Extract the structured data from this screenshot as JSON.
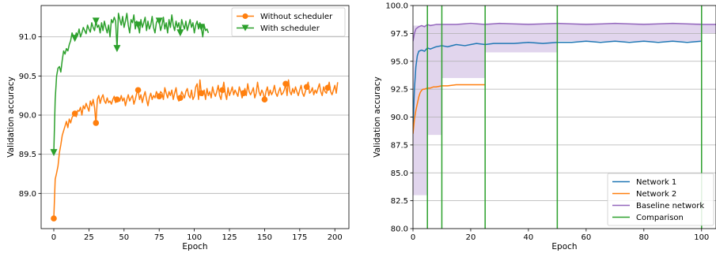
{
  "chart_data": [
    {
      "type": "line",
      "xlabel": "Epoch",
      "ylabel": "Validation accuracy",
      "xlim": [
        -9,
        210
      ],
      "ylim": [
        88.55,
        91.4
      ],
      "xticks": [
        0,
        25,
        50,
        75,
        100,
        125,
        150,
        175,
        200
      ],
      "yticks": [
        89.0,
        89.5,
        90.0,
        90.5,
        91.0
      ],
      "ytick_labels": [
        "89.0",
        "89.5",
        "90.0",
        "90.5",
        "91.0"
      ],
      "grid": "horizontal",
      "legend_position": "top-right",
      "series": [
        {
          "name": "Without scheduler",
          "color": "#ff7f0e",
          "marker": "circle",
          "markevery": 15,
          "y": [
            88.68,
            89.18,
            89.26,
            89.35,
            89.52,
            89.62,
            89.74,
            89.8,
            89.86,
            89.92,
            89.84,
            89.95,
            89.9,
            89.97,
            90.0,
            90.02,
            89.98,
            90.06,
            90.05,
            90.1,
            90.0,
            90.12,
            90.08,
            90.15,
            90.1,
            90.05,
            90.18,
            90.12,
            90.2,
            90.1,
            89.9,
            90.2,
            90.25,
            90.15,
            90.22,
            90.26,
            90.18,
            90.15,
            90.22,
            90.16,
            90.18,
            90.14,
            90.2,
            90.24,
            90.16,
            90.2,
            90.22,
            90.18,
            90.25,
            90.18,
            90.22,
            90.12,
            90.2,
            90.26,
            90.18,
            90.22,
            90.25,
            90.14,
            90.2,
            90.28,
            90.32,
            90.2,
            90.26,
            90.16,
            90.24,
            90.3,
            90.2,
            90.12,
            90.22,
            90.28,
            90.2,
            90.25,
            90.22,
            90.3,
            90.26,
            90.24,
            90.3,
            90.28,
            90.2,
            90.35,
            90.28,
            90.22,
            90.3,
            90.25,
            90.32,
            90.2,
            90.28,
            90.35,
            90.22,
            90.18,
            90.22,
            90.3,
            90.26,
            90.22,
            90.3,
            90.34,
            90.25,
            90.22,
            90.32,
            90.2,
            90.24,
            90.36,
            90.4,
            90.2,
            90.45,
            90.28,
            90.25,
            90.32,
            90.2,
            90.34,
            90.25,
            90.3,
            90.22,
            90.36,
            90.28,
            90.24,
            90.3,
            90.38,
            90.25,
            90.2,
            90.32,
            90.42,
            90.28,
            90.2,
            90.35,
            90.25,
            90.3,
            90.36,
            90.26,
            90.32,
            90.28,
            90.24,
            90.36,
            90.3,
            90.22,
            90.28,
            90.34,
            90.25,
            90.4,
            90.3,
            90.26,
            90.3,
            90.35,
            90.22,
            90.28,
            90.42,
            90.3,
            90.25,
            90.32,
            90.28,
            90.2,
            90.3,
            90.36,
            90.25,
            90.32,
            90.26,
            90.3,
            90.38,
            90.28,
            90.24,
            90.3,
            90.35,
            90.26,
            90.28,
            90.32,
            90.4,
            90.25,
            90.45,
            90.3,
            90.26,
            90.34,
            90.28,
            90.36,
            90.3,
            90.25,
            90.32,
            90.38,
            90.28,
            90.24,
            90.3,
            90.36,
            90.42,
            90.28,
            90.3,
            90.35,
            90.26,
            90.32,
            90.28,
            90.34,
            90.4,
            90.3,
            90.25,
            90.36,
            90.3,
            90.28,
            90.35,
            90.42,
            90.3,
            90.26,
            90.32,
            90.38,
            90.28,
            90.42
          ]
        },
        {
          "name": "With scheduler",
          "color": "#2ca02c",
          "marker": "triangle-down",
          "markevery": 15,
          "y": [
            89.52,
            90.2,
            90.5,
            90.6,
            90.62,
            90.55,
            90.7,
            90.82,
            90.78,
            90.85,
            90.82,
            90.9,
            90.95,
            91.05,
            91.0,
            90.98,
            91.05,
            91.02,
            91.1,
            91.0,
            91.05,
            91.12,
            91.08,
            91.04,
            91.15,
            91.1,
            91.06,
            91.18,
            91.12,
            91.08,
            91.2,
            91.12,
            91.15,
            91.05,
            91.18,
            91.08,
            91.2,
            91.12,
            91.05,
            91.15,
            91.0,
            91.22,
            91.18,
            91.25,
            91.2,
            90.85,
            91.3,
            91.22,
            91.15,
            91.26,
            91.12,
            91.2,
            91.3,
            91.15,
            91.05,
            91.22,
            91.18,
            91.28,
            91.1,
            91.2,
            91.15,
            91.05,
            91.22,
            91.12,
            91.18,
            91.25,
            91.08,
            91.2,
            91.1,
            91.15,
            91.26,
            91.12,
            91.05,
            91.18,
            91.22,
            91.2,
            91.08,
            91.15,
            91.25,
            91.1,
            91.18,
            91.05,
            91.22,
            91.12,
            91.28,
            91.15,
            91.08,
            91.2,
            91.12,
            91.18,
            91.05,
            91.22,
            91.15,
            91.1,
            91.2,
            91.08,
            91.15,
            91.22,
            91.12,
            91.18,
            91.05,
            91.15,
            91.2,
            91.1,
            91.18,
            91.12,
            91.0,
            91.15,
            91.08,
            91.1,
            91.05
          ]
        }
      ]
    },
    {
      "type": "line",
      "xlabel": "Epoch",
      "ylabel": "Validation accuracy",
      "xlim": [
        0,
        105
      ],
      "ylim": [
        80.0,
        100.0
      ],
      "xticks": [
        0,
        20,
        40,
        60,
        80,
        100
      ],
      "yticks": [
        80.0,
        82.5,
        85.0,
        87.5,
        90.0,
        92.5,
        95.0,
        97.5,
        100.0
      ],
      "ytick_labels": [
        "80.0",
        "82.5",
        "85.0",
        "87.5",
        "90.0",
        "92.5",
        "95.0",
        "97.5",
        "100.0"
      ],
      "grid": "horizontal",
      "legend_position": "lower-right",
      "series": [
        {
          "name": "Network 1",
          "color": "#1f77b4",
          "x": [
            0,
            0.5,
            1,
            1.5,
            2,
            3,
            4,
            5,
            6,
            8,
            10,
            12,
            15,
            18,
            20,
            22,
            25,
            28,
            30,
            35,
            40,
            45,
            50,
            55,
            60,
            65,
            70,
            75,
            80,
            85,
            90,
            95,
            100
          ],
          "y": [
            89.0,
            92.5,
            94.5,
            95.5,
            95.9,
            96.0,
            95.9,
            96.2,
            96.1,
            96.3,
            96.4,
            96.3,
            96.5,
            96.4,
            96.5,
            96.6,
            96.5,
            96.6,
            96.6,
            96.6,
            96.7,
            96.6,
            96.7,
            96.7,
            96.8,
            96.7,
            96.8,
            96.7,
            96.8,
            96.7,
            96.8,
            96.7,
            96.8
          ]
        },
        {
          "name": "Network 2",
          "color": "#ff7f0e",
          "x": [
            0,
            0.5,
            1,
            1.5,
            2,
            2.5,
            3,
            3.5,
            4,
            5,
            6,
            7,
            8,
            10,
            12,
            15,
            18,
            20,
            22,
            25
          ],
          "y": [
            88.5,
            89.8,
            90.6,
            91.2,
            91.8,
            92.2,
            92.4,
            92.5,
            92.5,
            92.6,
            92.6,
            92.7,
            92.7,
            92.8,
            92.8,
            92.9,
            92.9,
            92.9,
            92.9,
            92.9
          ]
        },
        {
          "name": "Baseline network",
          "color": "#9467bd",
          "x": [
            0,
            0.5,
            1,
            1.5,
            2,
            3,
            4,
            5,
            6,
            8,
            10,
            15,
            20,
            25,
            30,
            40,
            50,
            60,
            70,
            80,
            90,
            100,
            105
          ],
          "y": [
            96.8,
            97.5,
            97.9,
            98.0,
            98.1,
            98.2,
            98.1,
            98.3,
            98.2,
            98.3,
            98.3,
            98.3,
            98.4,
            98.3,
            98.4,
            98.3,
            98.4,
            98.3,
            98.4,
            98.3,
            98.4,
            98.3,
            98.3
          ]
        },
        {
          "name": "Comparison",
          "color": "#2ca02c",
          "vlines": [
            5,
            10,
            25,
            50,
            100
          ]
        }
      ],
      "shaded_bands": [
        {
          "color": "#9467bd",
          "x_from": 0,
          "x_to": 5,
          "y_low": 83.0,
          "y_high": 98.2
        },
        {
          "color": "#9467bd",
          "x_from": 5,
          "x_to": 10,
          "y_low": 88.4,
          "y_high": 98.3
        },
        {
          "color": "#9467bd",
          "x_from": 10,
          "x_to": 25,
          "y_low": 93.5,
          "y_high": 98.3
        },
        {
          "color": "#9467bd",
          "x_from": 25,
          "x_to": 50,
          "y_low": 95.8,
          "y_high": 98.4
        },
        {
          "color": "#9467bd",
          "x_from": 50,
          "x_to": 100,
          "y_low": 96.8,
          "y_high": 98.4
        },
        {
          "color": "#9467bd",
          "x_from": 100,
          "x_to": 105,
          "y_low": 97.5,
          "y_high": 98.3
        }
      ]
    }
  ]
}
